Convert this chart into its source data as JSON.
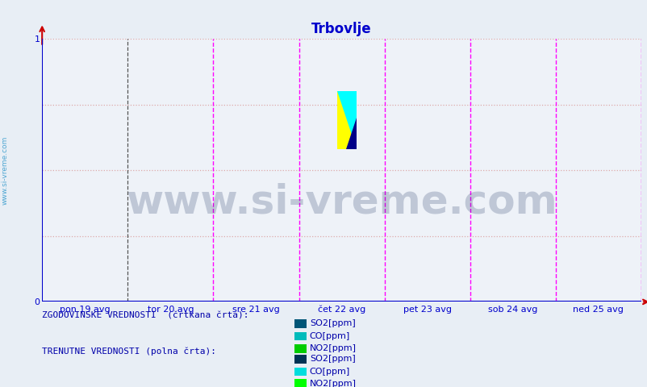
{
  "title": "Trbovlje",
  "title_color": "#0000cc",
  "title_fontsize": 12,
  "bg_color": "#e8eef5",
  "plot_bg_color": "#eef2f8",
  "axis_color": "#0000cc",
  "x_arrow_color": "#cc0000",
  "y_arrow_color": "#cc0000",
  "ylim": [
    0,
    1
  ],
  "yticks": [
    0,
    1
  ],
  "xlim": [
    0,
    7
  ],
  "day_labels": [
    "pon 19 avg",
    "tor 20 avg",
    "sre 21 avg",
    "čet 22 avg",
    "pet 23 avg",
    "sob 24 avg",
    "ned 25 avg"
  ],
  "day_positions": [
    0.5,
    1.5,
    2.5,
    3.5,
    4.5,
    5.5,
    6.5
  ],
  "vline_color": "#ff00ff",
  "vline_style": "--",
  "vline1_color": "#555555",
  "vline1_style": "--",
  "hgrid_color": "#ddaaaa",
  "hgrid_style": ":",
  "watermark": "www.si-vreme.com",
  "watermark_color": "#1a3060",
  "watermark_alpha": 0.22,
  "watermark_fontsize": 36,
  "side_text": "www.si-vreme.com",
  "side_color": "#3399cc",
  "legend1_title": "ZGODOVINSKE VREDNOSTI  (črtkana črta):",
  "legend2_title": "TRENUTNE VREDNOSTI (polna črta):",
  "legend_title_color": "#0000aa",
  "legend_label_color": "#0000aa",
  "legend_items": [
    "SO2[ppm]",
    "CO[ppm]",
    "NO2[ppm]"
  ],
  "hist_sq_colors": [
    "#005577",
    "#00bbbb",
    "#00cc00"
  ],
  "curr_sq_colors": [
    "#003355",
    "#00dddd",
    "#00ff00"
  ],
  "logo_yellow": "#ffff00",
  "logo_cyan": "#00ffff",
  "logo_blue": "#000088",
  "tick_fontsize": 8,
  "tick_color": "#0000cc",
  "legend_fontsize": 8
}
